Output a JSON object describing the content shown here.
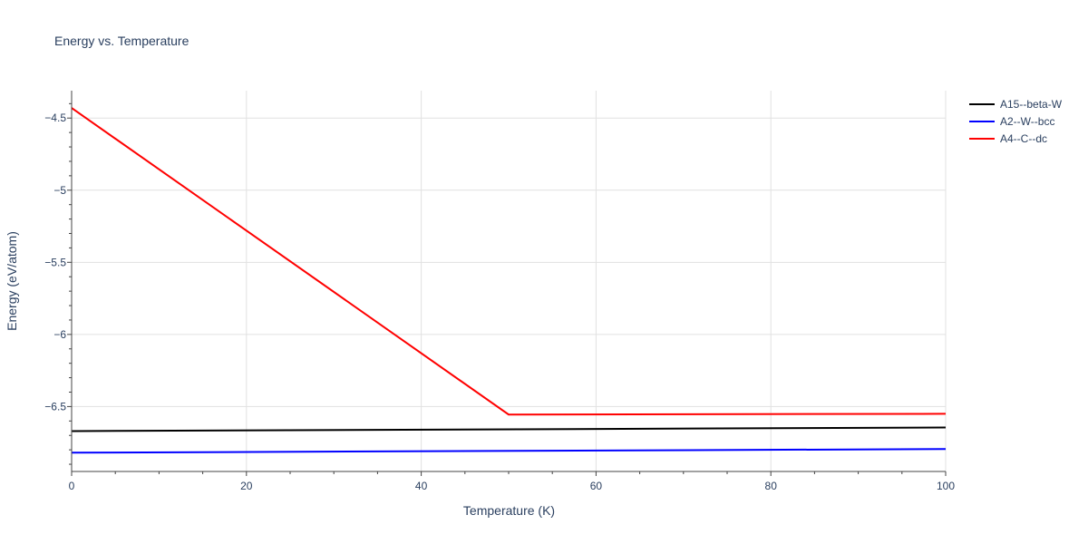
{
  "chart_data": {
    "type": "line",
    "title": "Energy vs. Temperature",
    "xlabel": "Temperature (K)",
    "ylabel": "Energy (eV/atom)",
    "xlim": [
      0,
      100
    ],
    "ylim": [
      -6.95,
      -4.31
    ],
    "x_ticks": [
      0,
      20,
      40,
      60,
      80,
      100
    ],
    "x_tick_labels": [
      "0",
      "20",
      "40",
      "60",
      "80",
      "100"
    ],
    "y_ticks": [
      -4.5,
      -5,
      -5.5,
      -6,
      -6.5
    ],
    "y_tick_labels": [
      "−4.5",
      "−5",
      "−5.5",
      "−6",
      "−6.5"
    ],
    "grid": true,
    "legend_position": "top-right",
    "series": [
      {
        "name": "A15--beta-W",
        "color": "#000000",
        "x": [
          0,
          100
        ],
        "y": [
          -6.67,
          -6.645
        ]
      },
      {
        "name": "A2--W--bcc",
        "color": "#0000ff",
        "x": [
          0,
          100
        ],
        "y": [
          -6.82,
          -6.795
        ]
      },
      {
        "name": "A4--C--dc",
        "color": "#ff0000",
        "x": [
          0,
          50,
          100
        ],
        "y": [
          -4.43,
          -6.555,
          -6.55
        ]
      }
    ]
  }
}
